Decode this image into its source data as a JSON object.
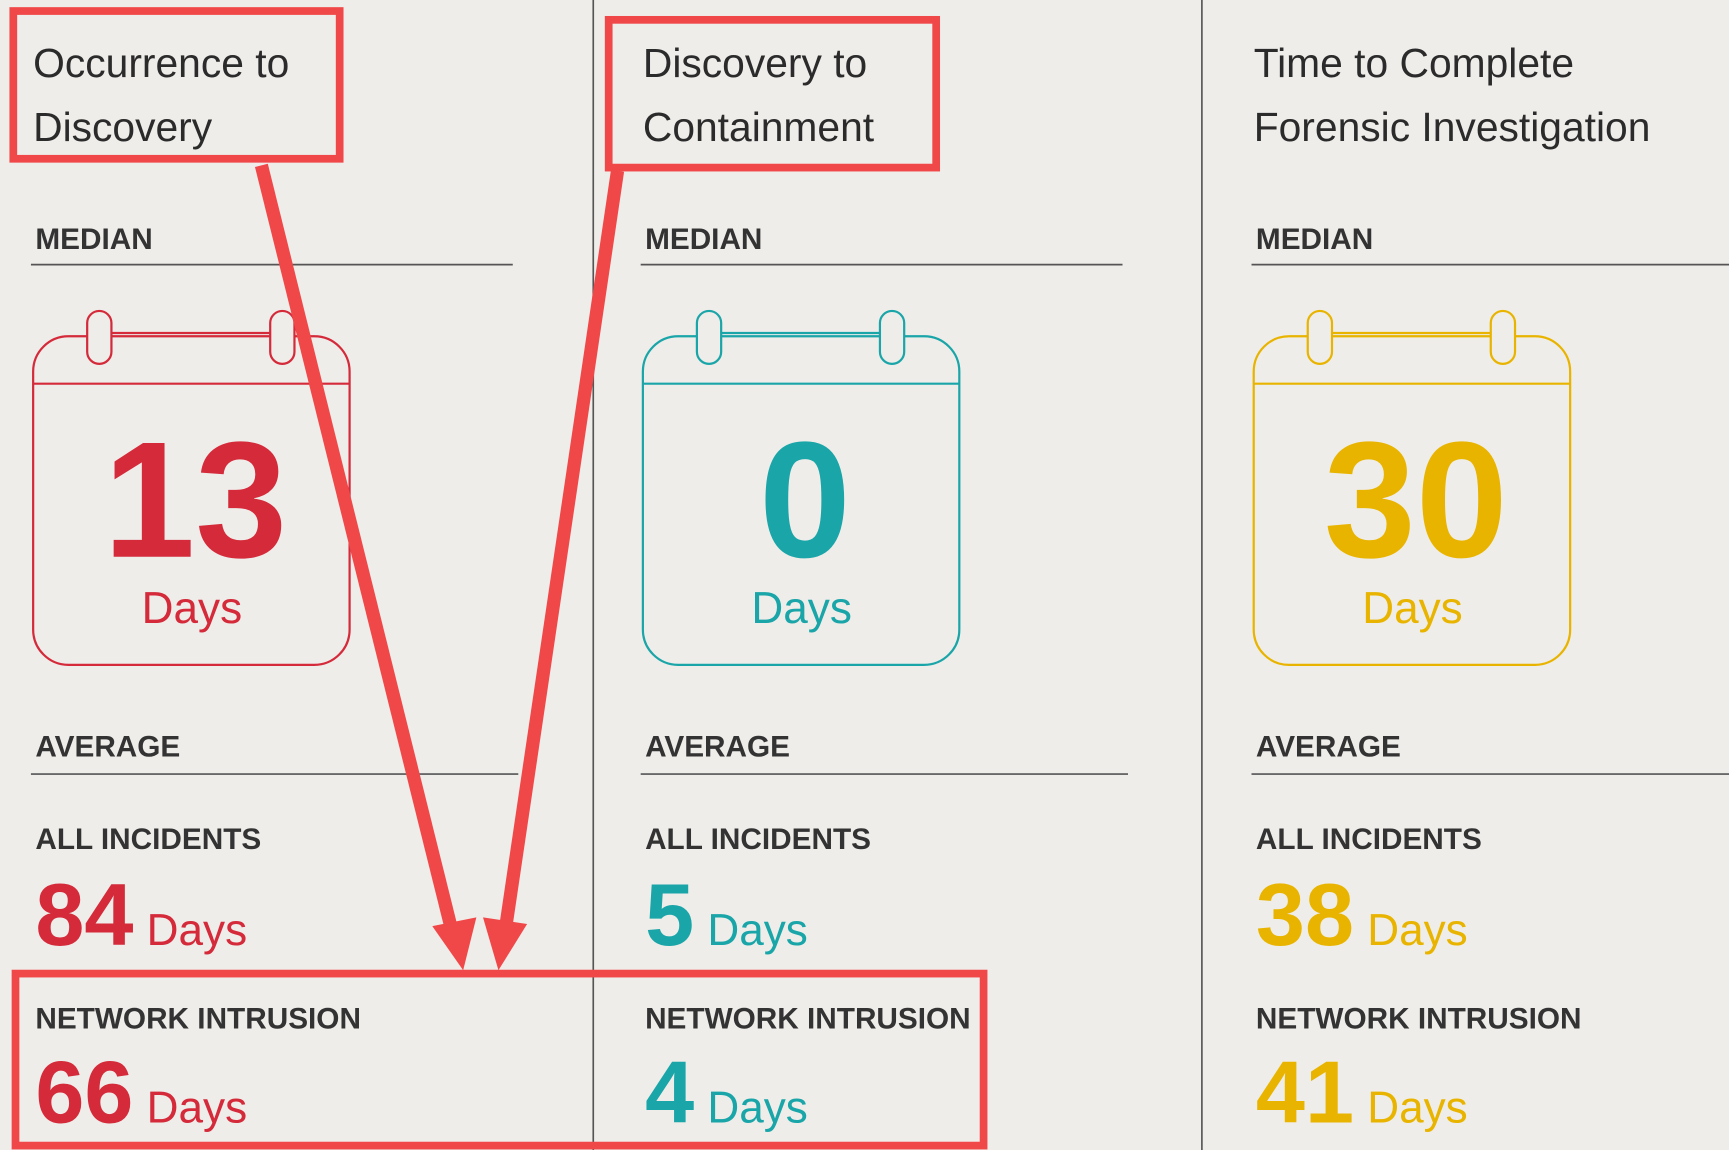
{
  "columns": [
    {
      "title": [
        "Occurrence to",
        "Discovery"
      ],
      "color": "#d42a3a",
      "median_label": "MEDIAN",
      "median_value": "13",
      "median_unit": "Days",
      "average_label": "AVERAGE",
      "all_label": "ALL INCIDENTS",
      "all_value": "84",
      "all_unit": "Days",
      "network_label": "NETWORK INTRUSION",
      "network_value": "66",
      "network_unit": "Days"
    },
    {
      "title": [
        "Discovery to",
        "Containment"
      ],
      "color": "#1aa5a8",
      "median_label": "MEDIAN",
      "median_value": "0",
      "median_unit": "Days",
      "average_label": "AVERAGE",
      "all_label": "ALL INCIDENTS",
      "all_value": "5",
      "all_unit": "Days",
      "network_label": "NETWORK INTRUSION",
      "network_value": "4",
      "network_unit": "Days"
    },
    {
      "title": [
        "Time to Complete",
        "Forensic Investigation"
      ],
      "color": "#e8b400",
      "median_label": "MEDIAN",
      "median_value": "30",
      "median_unit": "Days",
      "average_label": "AVERAGE",
      "all_label": "ALL INCIDENTS",
      "all_value": "38",
      "all_unit": "Days",
      "network_label": "NETWORK INTRUSION",
      "network_value": "41",
      "network_unit": "Days"
    }
  ]
}
